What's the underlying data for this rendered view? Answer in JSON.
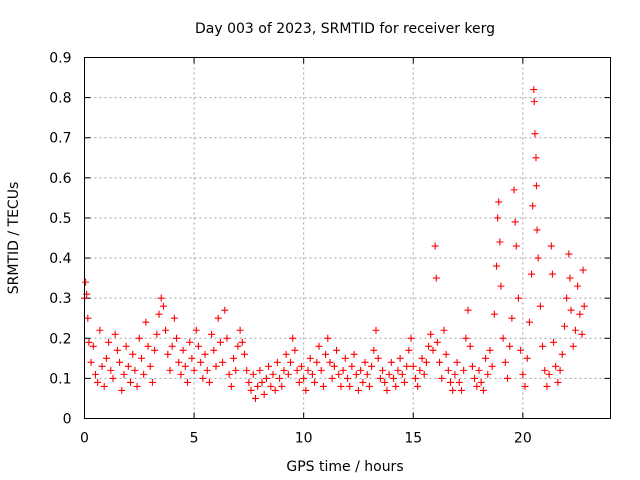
{
  "chart_data": {
    "type": "scatter",
    "title": "Day 003 of 2023, SRMTID for receiver kerg",
    "xlabel": "GPS time / hours",
    "ylabel": "SRMTID / TECUs",
    "xlim": [
      0,
      24
    ],
    "ylim": [
      0,
      0.9
    ],
    "xticks": [
      0,
      5,
      10,
      15,
      20
    ],
    "xtick_labels": [
      "0",
      "5",
      "10",
      "15",
      "20"
    ],
    "yticks": [
      0,
      0.1,
      0.2,
      0.3,
      0.4,
      0.5,
      0.6,
      0.7,
      0.8,
      0.9
    ],
    "ytick_labels": [
      "0",
      "0.1",
      "0.2",
      "0.3",
      "0.4",
      "0.5",
      "0.6",
      "0.7",
      "0.8",
      "0.9"
    ],
    "grid": true,
    "marker": "+",
    "color": "#ff0000",
    "series": [
      {
        "name": "SRMTID",
        "points": [
          [
            0.0,
            0.3
          ],
          [
            0.05,
            0.34
          ],
          [
            0.1,
            0.31
          ],
          [
            0.15,
            0.25
          ],
          [
            0.2,
            0.19
          ],
          [
            0.3,
            0.14
          ],
          [
            0.4,
            0.18
          ],
          [
            0.5,
            0.11
          ],
          [
            0.6,
            0.09
          ],
          [
            0.7,
            0.22
          ],
          [
            0.8,
            0.13
          ],
          [
            0.9,
            0.08
          ],
          [
            1.0,
            0.15
          ],
          [
            1.1,
            0.19
          ],
          [
            1.2,
            0.12
          ],
          [
            1.3,
            0.1
          ],
          [
            1.4,
            0.21
          ],
          [
            1.5,
            0.17
          ],
          [
            1.6,
            0.14
          ],
          [
            1.7,
            0.07
          ],
          [
            1.8,
            0.11
          ],
          [
            1.9,
            0.18
          ],
          [
            2.0,
            0.13
          ],
          [
            2.1,
            0.09
          ],
          [
            2.2,
            0.16
          ],
          [
            2.3,
            0.12
          ],
          [
            2.4,
            0.08
          ],
          [
            2.5,
            0.2
          ],
          [
            2.6,
            0.15
          ],
          [
            2.7,
            0.11
          ],
          [
            2.8,
            0.24
          ],
          [
            2.9,
            0.18
          ],
          [
            3.0,
            0.13
          ],
          [
            3.1,
            0.09
          ],
          [
            3.2,
            0.17
          ],
          [
            3.3,
            0.21
          ],
          [
            3.4,
            0.26
          ],
          [
            3.5,
            0.3
          ],
          [
            3.6,
            0.28
          ],
          [
            3.7,
            0.22
          ],
          [
            3.8,
            0.16
          ],
          [
            3.9,
            0.12
          ],
          [
            4.0,
            0.18
          ],
          [
            4.1,
            0.25
          ],
          [
            4.2,
            0.2
          ],
          [
            4.3,
            0.14
          ],
          [
            4.4,
            0.11
          ],
          [
            4.5,
            0.17
          ],
          [
            4.6,
            0.13
          ],
          [
            4.7,
            0.09
          ],
          [
            4.8,
            0.19
          ],
          [
            4.9,
            0.15
          ],
          [
            5.0,
            0.12
          ],
          [
            5.1,
            0.22
          ],
          [
            5.2,
            0.18
          ],
          [
            5.3,
            0.14
          ],
          [
            5.4,
            0.1
          ],
          [
            5.5,
            0.16
          ],
          [
            5.6,
            0.12
          ],
          [
            5.7,
            0.09
          ],
          [
            5.8,
            0.21
          ],
          [
            5.9,
            0.17
          ],
          [
            6.0,
            0.13
          ],
          [
            6.1,
            0.25
          ],
          [
            6.2,
            0.19
          ],
          [
            6.3,
            0.14
          ],
          [
            6.4,
            0.27
          ],
          [
            6.5,
            0.2
          ],
          [
            6.6,
            0.11
          ],
          [
            6.7,
            0.08
          ],
          [
            6.8,
            0.15
          ],
          [
            6.9,
            0.12
          ],
          [
            7.0,
            0.18
          ],
          [
            7.1,
            0.22
          ],
          [
            7.2,
            0.19
          ],
          [
            7.3,
            0.16
          ],
          [
            7.4,
            0.12
          ],
          [
            7.5,
            0.09
          ],
          [
            7.6,
            0.07
          ],
          [
            7.7,
            0.11
          ],
          [
            7.8,
            0.05
          ],
          [
            7.9,
            0.08
          ],
          [
            8.0,
            0.12
          ],
          [
            8.1,
            0.09
          ],
          [
            8.2,
            0.06
          ],
          [
            8.3,
            0.1
          ],
          [
            8.4,
            0.13
          ],
          [
            8.5,
            0.08
          ],
          [
            8.6,
            0.11
          ],
          [
            8.7,
            0.07
          ],
          [
            8.8,
            0.14
          ],
          [
            8.9,
            0.1
          ],
          [
            9.0,
            0.08
          ],
          [
            9.1,
            0.12
          ],
          [
            9.2,
            0.16
          ],
          [
            9.3,
            0.11
          ],
          [
            9.4,
            0.14
          ],
          [
            9.5,
            0.2
          ],
          [
            9.6,
            0.17
          ],
          [
            9.7,
            0.12
          ],
          [
            9.8,
            0.09
          ],
          [
            9.9,
            0.13
          ],
          [
            10.0,
            0.1
          ],
          [
            10.1,
            0.07
          ],
          [
            10.2,
            0.12
          ],
          [
            10.3,
            0.15
          ],
          [
            10.4,
            0.11
          ],
          [
            10.5,
            0.09
          ],
          [
            10.6,
            0.14
          ],
          [
            10.7,
            0.18
          ],
          [
            10.8,
            0.12
          ],
          [
            10.9,
            0.08
          ],
          [
            11.0,
            0.16
          ],
          [
            11.1,
            0.2
          ],
          [
            11.2,
            0.14
          ],
          [
            11.3,
            0.1
          ],
          [
            11.4,
            0.13
          ],
          [
            11.5,
            0.17
          ],
          [
            11.6,
            0.11
          ],
          [
            11.7,
            0.08
          ],
          [
            11.8,
            0.12
          ],
          [
            11.9,
            0.15
          ],
          [
            12.0,
            0.1
          ],
          [
            12.1,
            0.08
          ],
          [
            12.2,
            0.13
          ],
          [
            12.3,
            0.16
          ],
          [
            12.4,
            0.11
          ],
          [
            12.5,
            0.07
          ],
          [
            12.6,
            0.12
          ],
          [
            12.7,
            0.09
          ],
          [
            12.8,
            0.14
          ],
          [
            12.9,
            0.11
          ],
          [
            13.0,
            0.08
          ],
          [
            13.1,
            0.13
          ],
          [
            13.2,
            0.17
          ],
          [
            13.3,
            0.22
          ],
          [
            13.4,
            0.15
          ],
          [
            13.5,
            0.1
          ],
          [
            13.6,
            0.12
          ],
          [
            13.7,
            0.09
          ],
          [
            13.8,
            0.07
          ],
          [
            13.9,
            0.11
          ],
          [
            14.0,
            0.14
          ],
          [
            14.1,
            0.1
          ],
          [
            14.2,
            0.08
          ],
          [
            14.3,
            0.12
          ],
          [
            14.4,
            0.15
          ],
          [
            14.5,
            0.11
          ],
          [
            14.6,
            0.09
          ],
          [
            14.7,
            0.13
          ],
          [
            14.8,
            0.17
          ],
          [
            14.9,
            0.2
          ],
          [
            15.0,
            0.13
          ],
          [
            15.1,
            0.1
          ],
          [
            15.2,
            0.08
          ],
          [
            15.3,
            0.12
          ],
          [
            15.4,
            0.15
          ],
          [
            15.5,
            0.11
          ],
          [
            15.6,
            0.14
          ],
          [
            15.7,
            0.18
          ],
          [
            15.8,
            0.21
          ],
          [
            15.9,
            0.17
          ],
          [
            16.0,
            0.43
          ],
          [
            16.05,
            0.35
          ],
          [
            16.1,
            0.19
          ],
          [
            16.2,
            0.14
          ],
          [
            16.3,
            0.1
          ],
          [
            16.4,
            0.22
          ],
          [
            16.5,
            0.16
          ],
          [
            16.6,
            0.12
          ],
          [
            16.7,
            0.09
          ],
          [
            16.8,
            0.07
          ],
          [
            16.9,
            0.11
          ],
          [
            17.0,
            0.14
          ],
          [
            17.1,
            0.09
          ],
          [
            17.2,
            0.07
          ],
          [
            17.3,
            0.12
          ],
          [
            17.4,
            0.2
          ],
          [
            17.5,
            0.27
          ],
          [
            17.6,
            0.18
          ],
          [
            17.7,
            0.13
          ],
          [
            17.8,
            0.1
          ],
          [
            17.9,
            0.08
          ],
          [
            18.0,
            0.12
          ],
          [
            18.1,
            0.09
          ],
          [
            18.2,
            0.07
          ],
          [
            18.3,
            0.15
          ],
          [
            18.4,
            0.11
          ],
          [
            18.5,
            0.17
          ],
          [
            18.6,
            0.13
          ],
          [
            18.7,
            0.26
          ],
          [
            18.8,
            0.38
          ],
          [
            18.85,
            0.5
          ],
          [
            18.9,
            0.54
          ],
          [
            18.95,
            0.44
          ],
          [
            19.0,
            0.33
          ],
          [
            19.1,
            0.2
          ],
          [
            19.2,
            0.14
          ],
          [
            19.3,
            0.1
          ],
          [
            19.4,
            0.18
          ],
          [
            19.5,
            0.25
          ],
          [
            19.6,
            0.57
          ],
          [
            19.65,
            0.49
          ],
          [
            19.7,
            0.43
          ],
          [
            19.8,
            0.3
          ],
          [
            19.9,
            0.17
          ],
          [
            20.0,
            0.11
          ],
          [
            20.1,
            0.08
          ],
          [
            20.2,
            0.15
          ],
          [
            20.3,
            0.24
          ],
          [
            20.4,
            0.36
          ],
          [
            20.45,
            0.53
          ],
          [
            20.5,
            0.82
          ],
          [
            20.52,
            0.79
          ],
          [
            20.55,
            0.71
          ],
          [
            20.6,
            0.65
          ],
          [
            20.62,
            0.58
          ],
          [
            20.65,
            0.47
          ],
          [
            20.7,
            0.4
          ],
          [
            20.8,
            0.28
          ],
          [
            20.9,
            0.18
          ],
          [
            21.0,
            0.12
          ],
          [
            21.1,
            0.08
          ],
          [
            21.2,
            0.11
          ],
          [
            21.3,
            0.43
          ],
          [
            21.35,
            0.36
          ],
          [
            21.4,
            0.19
          ],
          [
            21.5,
            0.13
          ],
          [
            21.6,
            0.09
          ],
          [
            21.7,
            0.12
          ],
          [
            21.8,
            0.16
          ],
          [
            21.9,
            0.23
          ],
          [
            22.0,
            0.3
          ],
          [
            22.1,
            0.41
          ],
          [
            22.15,
            0.35
          ],
          [
            22.2,
            0.27
          ],
          [
            22.3,
            0.18
          ],
          [
            22.4,
            0.22
          ],
          [
            22.5,
            0.33
          ],
          [
            22.6,
            0.26
          ],
          [
            22.7,
            0.21
          ],
          [
            22.75,
            0.37
          ],
          [
            22.8,
            0.28
          ]
        ]
      }
    ]
  }
}
